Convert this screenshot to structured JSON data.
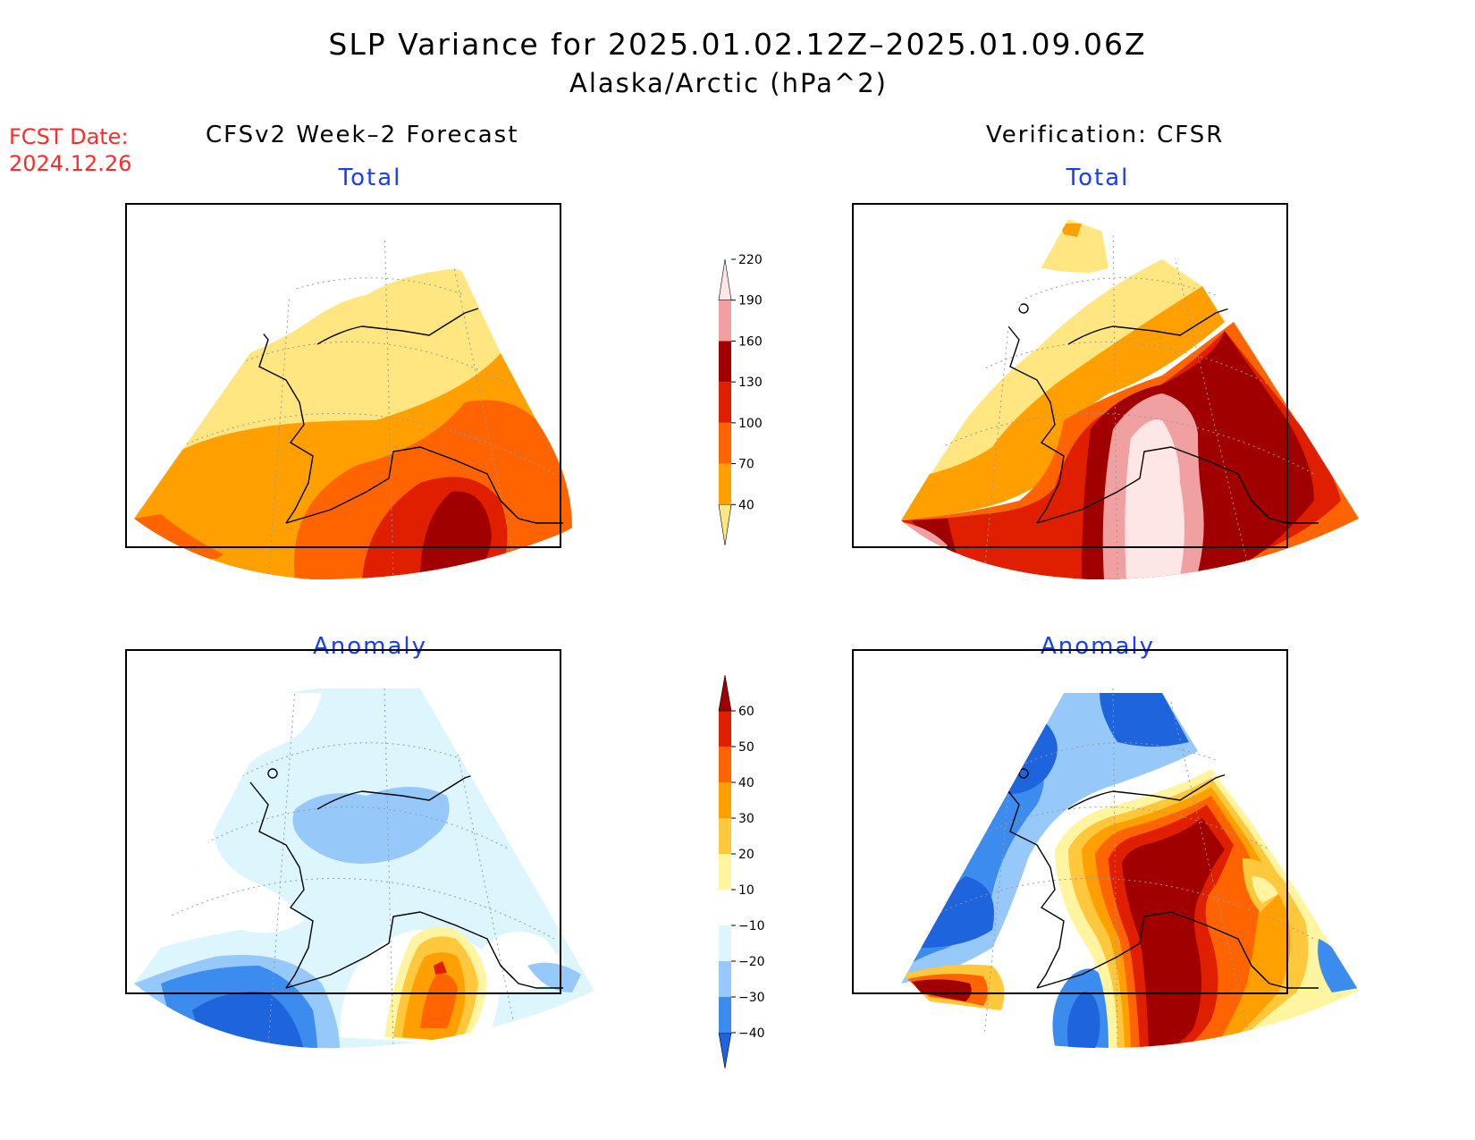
{
  "title": "SLP Variance for 2025.01.02.12Z–2025.01.09.06Z",
  "subtitle": "Alaska/Arctic (hPa^2)",
  "fcst_label": "FCST Date:",
  "fcst_date": "2024.12.26",
  "left_header": "CFSv2 Week–2 Forecast",
  "right_header": "Verification: CFSR",
  "panels": {
    "fc_total": "Total",
    "fc_anom": "Anomaly",
    "ver_total": "Total",
    "ver_anom": "Anomaly"
  },
  "total_scale": {
    "ticks": [
      "40",
      "70",
      "100",
      "130",
      "160",
      "190",
      "220"
    ],
    "colors": [
      "#ffe680",
      "#ffa000",
      "#ff6400",
      "#e01e00",
      "#a00000",
      "#f0a0a0",
      "#ffe6e6"
    ]
  },
  "anomaly_scale": {
    "ticks": [
      "−40",
      "−30",
      "−20",
      "−10",
      "10",
      "20",
      "30",
      "40",
      "50",
      "60"
    ],
    "colors": [
      "#1e64dc",
      "#3c8cf0",
      "#96c8fa",
      "#ddf5fd",
      "#ffffff",
      "#fff5a0",
      "#ffc83c",
      "#ffa000",
      "#ff6400",
      "#e01e00",
      "#a00000"
    ]
  }
}
